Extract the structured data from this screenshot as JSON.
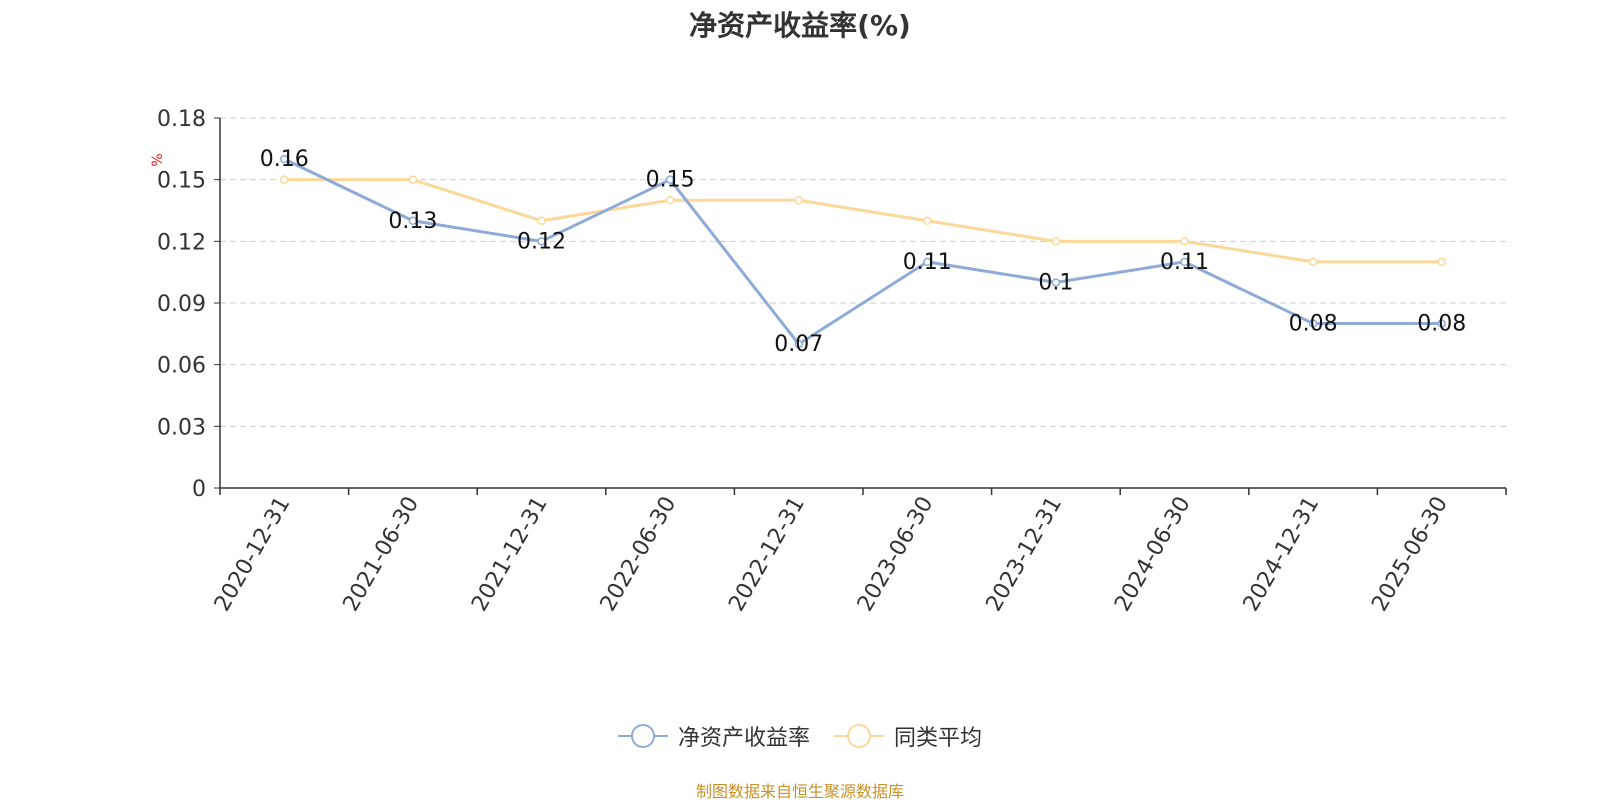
{
  "chart_data": {
    "type": "line",
    "title": "净资产收益率(%)",
    "ylabel": "%",
    "ylim": [
      0,
      0.18
    ],
    "yticks": [
      "0",
      "0.03",
      "0.06",
      "0.09",
      "0.12",
      "0.15",
      "0.18"
    ],
    "categories": [
      "2020-12-31",
      "2021-06-30",
      "2021-12-31",
      "2022-06-30",
      "2022-12-31",
      "2023-06-30",
      "2023-12-31",
      "2024-06-30",
      "2024-12-31",
      "2025-06-30"
    ],
    "series": [
      {
        "name": "净资产收益率",
        "color": "#8eaad8",
        "values": [
          0.16,
          0.13,
          0.12,
          0.15,
          0.07,
          0.11,
          0.1,
          0.11,
          0.08,
          0.08
        ],
        "labels": [
          "0.16",
          "0.13",
          "0.12",
          "0.15",
          "0.07",
          "0.11",
          "0.1",
          "0.11",
          "0.08",
          "0.08"
        ]
      },
      {
        "name": "同类平均",
        "color": "#fbd899",
        "values": [
          0.15,
          0.15,
          0.13,
          0.14,
          0.14,
          0.13,
          0.12,
          0.12,
          0.11,
          0.11
        ]
      }
    ],
    "grid": true,
    "legend_position": "bottom-center"
  },
  "source_note": "制图数据来自恒生聚源数据库"
}
